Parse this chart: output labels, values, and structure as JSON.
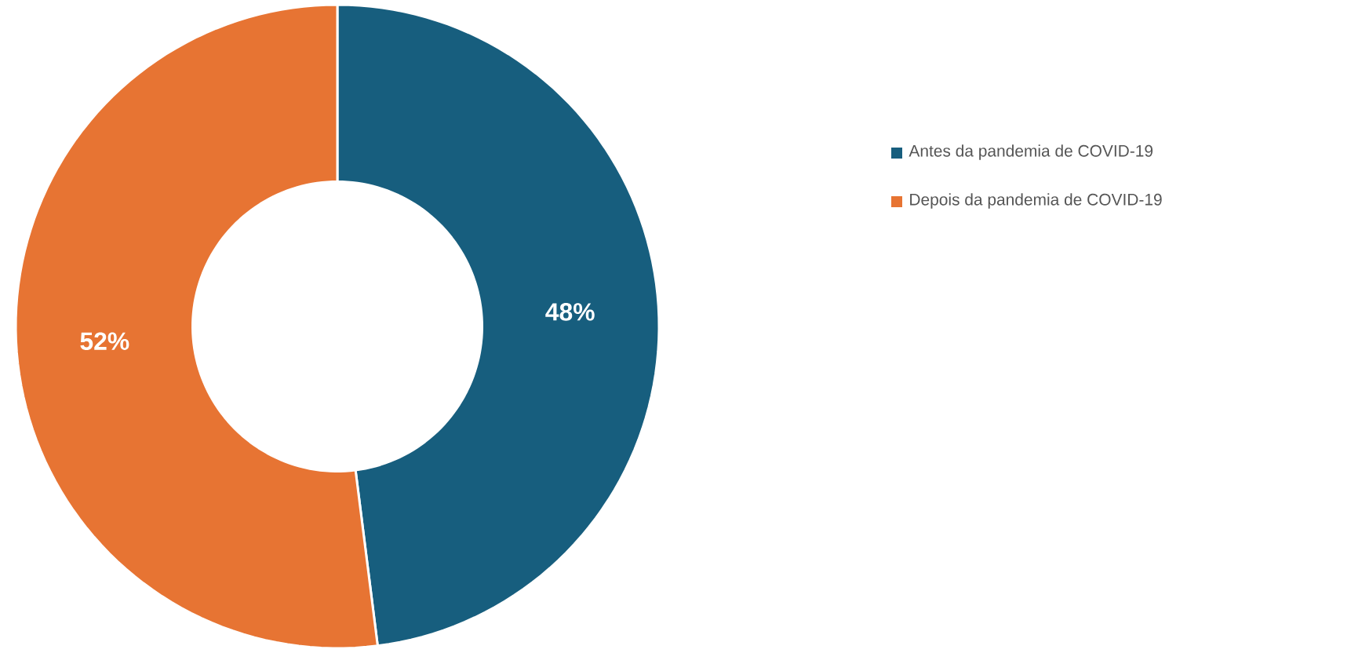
{
  "chart_data": {
    "type": "donut",
    "categories": [
      "Antes da pandemia de COVID-19",
      "Depois da pandemia de COVID-19"
    ],
    "values": [
      48,
      52
    ],
    "colors": [
      "#175e7e",
      "#e77433"
    ],
    "value_labels": [
      "48%",
      "52%"
    ],
    "legend": "right"
  }
}
